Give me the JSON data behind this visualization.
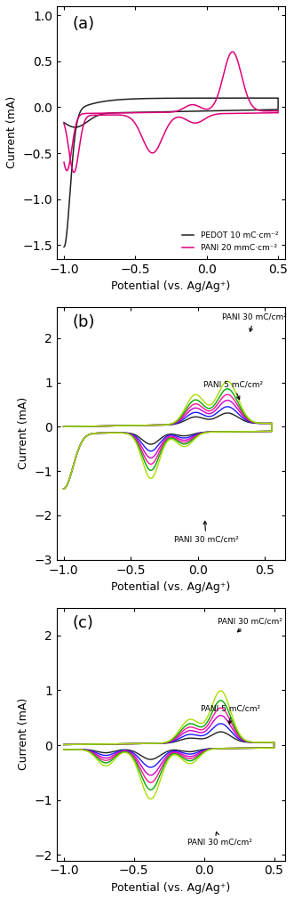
{
  "panel_a": {
    "title": "(a)",
    "xlim": [
      -1.05,
      0.55
    ],
    "ylim": [
      -1.65,
      1.1
    ],
    "yticks": [
      -1.5,
      -1.0,
      -0.5,
      0.0,
      0.5,
      1.0
    ],
    "xticks": [
      -1.0,
      -0.5,
      0.0,
      0.5
    ],
    "pedot_color": "#222222",
    "pani_color": "#dd007a"
  },
  "panel_b": {
    "title": "(b)",
    "xlim": [
      -1.05,
      0.65
    ],
    "ylim": [
      -3.0,
      2.7
    ],
    "yticks": [
      -3,
      -2,
      -1,
      0,
      1,
      2
    ],
    "xticks": [
      -1.0,
      -0.5,
      0.0,
      0.5
    ],
    "colors": [
      "#222222",
      "#1a1aff",
      "#cc00cc",
      "#ff1493",
      "#00aa00",
      "#aadd00"
    ]
  },
  "panel_c": {
    "title": "(c)",
    "xlim": [
      -1.05,
      0.58
    ],
    "ylim": [
      -2.1,
      2.5
    ],
    "yticks": [
      -2,
      -1,
      0,
      1,
      2
    ],
    "xticks": [
      -1.0,
      -0.5,
      0.0,
      0.5
    ],
    "colors": [
      "#222222",
      "#1a1aff",
      "#cc00cc",
      "#ff1493",
      "#00aa00",
      "#aadd00"
    ]
  },
  "xlabel": "Potential (vs. Ag/Ag⁺)",
  "ylabel": "Current (mA)",
  "figsize": [
    3.31,
    10.11
  ],
  "dpi": 100
}
